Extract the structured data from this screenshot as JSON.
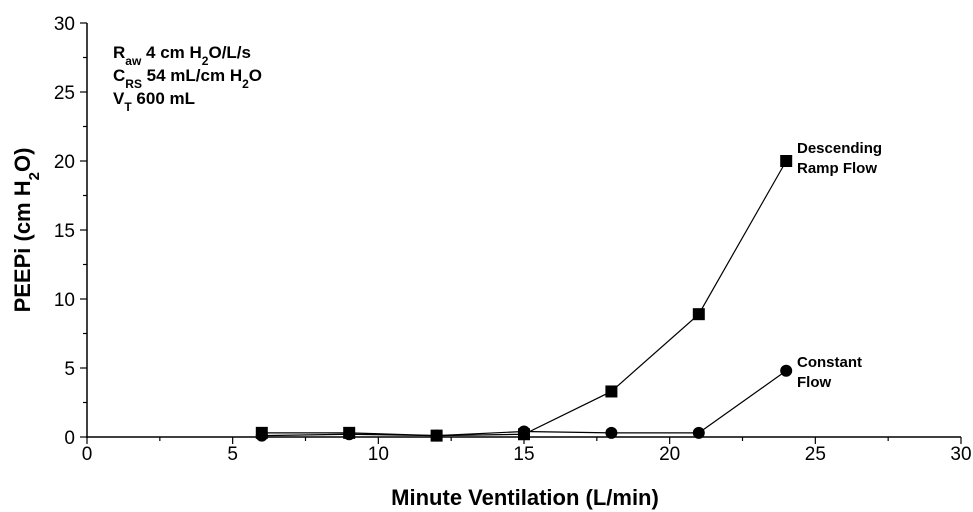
{
  "chart_data": {
    "type": "line",
    "xlabel": "Minute Ventilation (L/min)",
    "ylabel_parts": [
      "PEEPi (cm H",
      "2",
      "O)"
    ],
    "xlim": [
      0,
      30
    ],
    "ylim": [
      0,
      30
    ],
    "xticks": [
      0,
      5,
      10,
      15,
      20,
      25,
      30
    ],
    "yticks": [
      0,
      5,
      10,
      15,
      20,
      25,
      30
    ],
    "grid": false,
    "annotations": [
      {
        "id": "raw",
        "parts": [
          [
            "R",
            "normal"
          ],
          [
            "aw",
            "sub"
          ],
          [
            " 4 cm H",
            "normal"
          ],
          [
            "2",
            "sub"
          ],
          [
            "O/L/s",
            "normal"
          ]
        ]
      },
      {
        "id": "crs",
        "parts": [
          [
            "C",
            "normal"
          ],
          [
            "RS",
            "sub"
          ],
          [
            " 54 mL/cm H",
            "normal"
          ],
          [
            "2",
            "sub"
          ],
          [
            "O",
            "normal"
          ]
        ]
      },
      {
        "id": "vt",
        "parts": [
          [
            "V",
            "normal"
          ],
          [
            "T",
            "sub"
          ],
          [
            " 600 mL",
            "normal"
          ]
        ]
      }
    ],
    "series": [
      {
        "name": "Descending Ramp Flow",
        "label_lines": [
          "Descending",
          "Ramp Flow"
        ],
        "marker": "square",
        "x": [
          6,
          9,
          12,
          15,
          18,
          21,
          24
        ],
        "y": [
          0.3,
          0.3,
          0.1,
          0.2,
          3.3,
          8.9,
          20.0
        ]
      },
      {
        "name": "Constant Flow",
        "label_lines": [
          "Constant",
          "Flow"
        ],
        "marker": "circle",
        "x": [
          6,
          9,
          12,
          15,
          18,
          21,
          24
        ],
        "y": [
          0.1,
          0.2,
          0.1,
          0.4,
          0.3,
          0.3,
          4.8
        ]
      }
    ]
  }
}
